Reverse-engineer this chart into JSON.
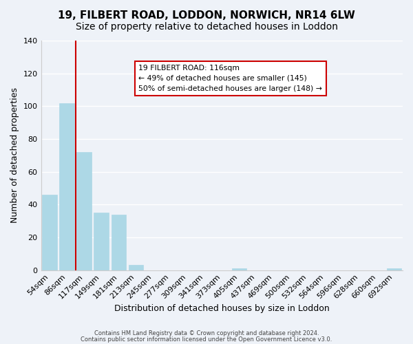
{
  "title1": "19, FILBERT ROAD, LODDON, NORWICH, NR14 6LW",
  "title2": "Size of property relative to detached houses in Loddon",
  "xlabel": "Distribution of detached houses by size in Loddon",
  "ylabel": "Number of detached properties",
  "categories": [
    "54sqm",
    "86sqm",
    "117sqm",
    "149sqm",
    "181sqm",
    "213sqm",
    "245sqm",
    "277sqm",
    "309sqm",
    "341sqm",
    "373sqm",
    "405sqm",
    "437sqm",
    "469sqm",
    "500sqm",
    "532sqm",
    "564sqm",
    "596sqm",
    "628sqm",
    "660sqm",
    "692sqm"
  ],
  "values": [
    46,
    102,
    72,
    35,
    34,
    3,
    0,
    0,
    0,
    0,
    0,
    1,
    0,
    0,
    0,
    0,
    0,
    0,
    0,
    0,
    1
  ],
  "bar_color": "#add8e6",
  "vline_x_index": 2,
  "vline_color": "#cc0000",
  "ylim": [
    0,
    140
  ],
  "yticks": [
    0,
    20,
    40,
    60,
    80,
    100,
    120,
    140
  ],
  "annotation_line1": "19 FILBERT ROAD: 116sqm",
  "annotation_line2": "← 49% of detached houses are smaller (145)",
  "annotation_line3": "50% of semi-detached houses are larger (148) →",
  "footer1": "Contains HM Land Registry data © Crown copyright and database right 2024.",
  "footer2": "Contains public sector information licensed under the Open Government Licence v3.0.",
  "background_color": "#eef2f8",
  "plot_background": "#eef2f8",
  "grid_color": "#ffffff",
  "title_fontsize": 11,
  "subtitle_fontsize": 10,
  "label_fontsize": 8
}
